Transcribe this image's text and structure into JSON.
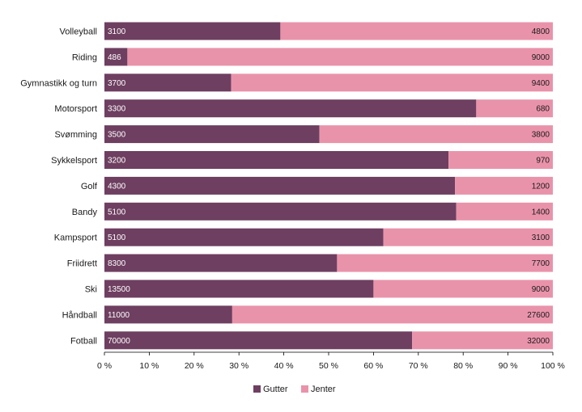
{
  "chart_data": {
    "type": "bar",
    "orientation": "horizontal",
    "stacked": "percent",
    "categories": [
      "Volleyball",
      "Riding",
      "Gymnastikk og turn",
      "Motorsport",
      "Svømming",
      "Sykkelsport",
      "Golf",
      "Bandy",
      "Kampsport",
      "Friidrett",
      "Ski",
      "Håndball",
      "Fotball"
    ],
    "series": [
      {
        "name": "Gutter",
        "color": "#6e3f61",
        "values": [
          3100,
          486,
          3700,
          3300,
          3500,
          3200,
          4300,
          5100,
          5100,
          8300,
          13500,
          11000,
          70000
        ]
      },
      {
        "name": "Jenter",
        "color": "#e993ab",
        "values": [
          4800,
          9000,
          9400,
          680,
          3800,
          970,
          1200,
          1400,
          3100,
          7700,
          9000,
          27600,
          32000
        ]
      }
    ],
    "x_ticks": [
      "0 %",
      "10 %",
      "20 %",
      "30 %",
      "40 %",
      "50 %",
      "60 %",
      "70 %",
      "80 %",
      "90 %",
      "100 %"
    ],
    "xlim": [
      0,
      100
    ],
    "grid": false,
    "legend_position": "bottom"
  }
}
